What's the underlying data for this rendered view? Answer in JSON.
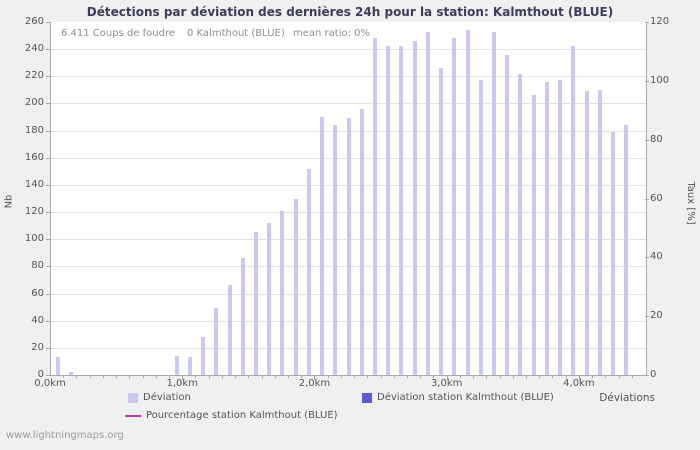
{
  "page": {
    "watermark": "www.lightningmaps.org"
  },
  "chart_data": {
    "type": "bar",
    "title": "Détections par déviation des dernières 24h pour la station: Kalmthout (BLUE)",
    "annotation": {
      "strikes": "6.411 Coups de foudre",
      "station": "0 Kalmthout (BLUE)",
      "mean_ratio": "mean ratio: 0%"
    },
    "x_axis_label": "Déviations",
    "x_max_km": 4.5,
    "bin_width_km": 0.1,
    "x_start_km": 0.05,
    "x_ticks": [
      {
        "km": 0.0,
        "label": "0,0km"
      },
      {
        "km": 1.0,
        "label": "1,0km"
      },
      {
        "km": 2.0,
        "label": "2,0km"
      },
      {
        "km": 3.0,
        "label": "3,0km"
      },
      {
        "km": 4.0,
        "label": "4,0km"
      }
    ],
    "y_left": {
      "label": "Nb",
      "min": 0,
      "max": 260,
      "step": 20
    },
    "y_right": {
      "label": "Taux [%]",
      "min": 0,
      "max": 120,
      "step": 20
    },
    "values": [
      13,
      2,
      0,
      0,
      0,
      0,
      0,
      0,
      0,
      14,
      13,
      28,
      49,
      66,
      86,
      105,
      112,
      121,
      130,
      152,
      190,
      184,
      189,
      196,
      248,
      242,
      242,
      246,
      253,
      226,
      248,
      254,
      217,
      253,
      236,
      222,
      206,
      216,
      217,
      242,
      209,
      210,
      179,
      184
    ],
    "colors": {
      "bar": "#c9c9f1",
      "station_bar": "#5a5ad9",
      "percent_line": "#b434b4",
      "grid": "#e2e2e2",
      "axis": "#a8a8a8",
      "title": "#3d3d5c",
      "text": "#555555",
      "muted": "#8f8f8f"
    },
    "legend": [
      {
        "label": "Déviation",
        "type": "box",
        "color_key": "bar"
      },
      {
        "label": "Déviation station Kalmthout (BLUE)",
        "type": "box",
        "color_key": "station_bar"
      },
      {
        "label": "Pourcentage station Kalmthout (BLUE)",
        "type": "line",
        "color_key": "percent_line"
      }
    ]
  }
}
